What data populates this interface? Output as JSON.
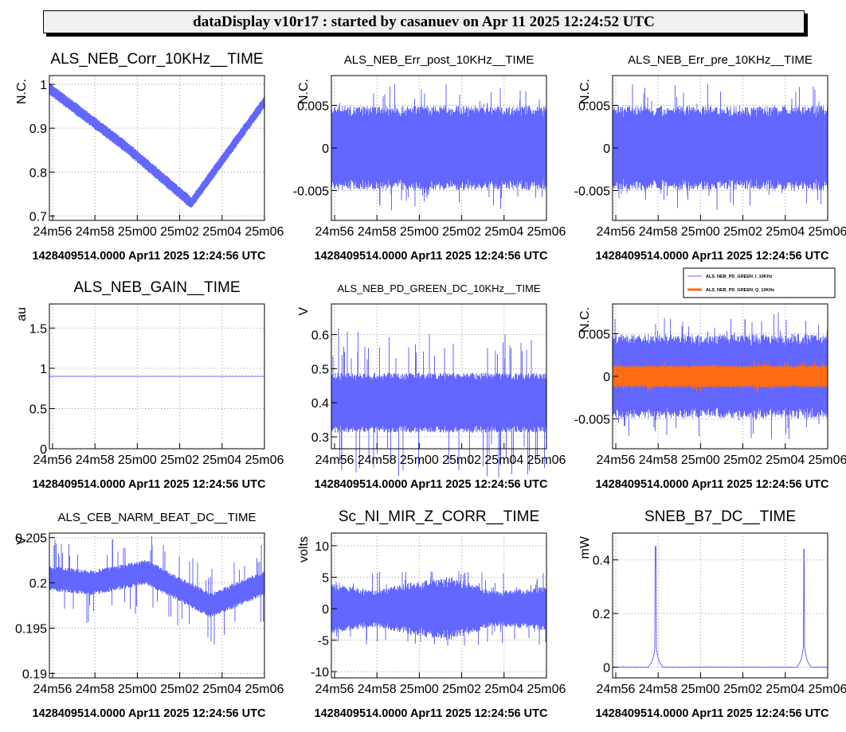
{
  "header": {
    "title": "dataDisplay v10r17 : started by casanuev on Apr 11 2025 12:24:52 UTC"
  },
  "colors": {
    "series": "#6366ff",
    "series2": "#ff6a14",
    "grid": "#9a9a9a"
  },
  "chart_data": [
    {
      "type": "line",
      "title": "ALS_NEB_Corr_10KHz__TIME",
      "ylabel": "N.C.",
      "ylim": [
        0.69,
        1.02
      ],
      "yticks": [
        0.7,
        0.8,
        0.9,
        1
      ],
      "ytick_labels": [
        "0.7",
        "0.8",
        "0.9",
        "1"
      ],
      "xtick_labels": [
        "24m56",
        "24m58",
        "25m00",
        "25m02",
        "25m04",
        "25m06"
      ],
      "footer": "1428409514.0000 Apr11 2025 12:24:56 UTC",
      "series": [
        {
          "signal": "vshape",
          "x": [
            0,
            0.35,
            0.66,
            1
          ],
          "center": [
            0.99,
            0.86,
            0.73,
            0.96
          ],
          "noise": 0.012
        }
      ]
    },
    {
      "type": "line",
      "title": "ALS_NEB_Err_post_10KHz__TIME",
      "ylabel": "N.C.",
      "ylim": [
        -0.0085,
        0.0085
      ],
      "yticks": [
        -0.005,
        0,
        0.005
      ],
      "ytick_labels": [
        "-0.005",
        "0",
        "0.005"
      ],
      "xtick_labels": [
        "24m56",
        "24m58",
        "25m00",
        "25m02",
        "25m04",
        "25m06"
      ],
      "footer": "1428409514.0000 Apr11 2025 12:24:56 UTC",
      "series": [
        {
          "signal": "band",
          "center": 0,
          "half": 0.0045,
          "spike": 0.0075
        }
      ]
    },
    {
      "type": "line",
      "title": "ALS_NEB_Err_pre_10KHz__TIME",
      "ylabel": "N.C.",
      "ylim": [
        -0.0085,
        0.0085
      ],
      "yticks": [
        -0.005,
        0,
        0.005
      ],
      "ytick_labels": [
        "-0.005",
        "0",
        "0.005"
      ],
      "xtick_labels": [
        "24m56",
        "24m58",
        "25m00",
        "25m02",
        "25m04",
        "25m06"
      ],
      "footer": "1428409514.0000 Apr11 2025 12:24:56 UTC",
      "series": [
        {
          "signal": "band",
          "center": 0,
          "half": 0.0045,
          "spike": 0.0075
        }
      ]
    },
    {
      "type": "line",
      "title": "ALS_NEB_GAIN__TIME",
      "ylabel": "au",
      "ylim": [
        0,
        1.8
      ],
      "yticks": [
        0,
        0.5,
        1,
        1.5
      ],
      "ytick_labels": [
        "0",
        "0.5",
        "1",
        "1.5"
      ],
      "xtick_labels": [
        "24m56",
        "24m58",
        "25m00",
        "25m02",
        "25m04",
        "25m06"
      ],
      "footer": "1428409514.0000 Apr11 2025 12:24:56 UTC",
      "series": [
        {
          "signal": "flat",
          "center": 0.9
        }
      ]
    },
    {
      "type": "line",
      "title": "ALS_NEB_PD_GREEN_DC_10KHz__TIME",
      "ylabel": "V",
      "ylim": [
        0.265,
        0.69
      ],
      "yticks": [
        0.3,
        0.4,
        0.5,
        0.6
      ],
      "ytick_labels": [
        "0.3",
        "0.4",
        "0.5",
        "0.6"
      ],
      "xtick_labels": [
        "24m56",
        "24m58",
        "25m00",
        "25m02",
        "25m04",
        "25m06"
      ],
      "footer": "1428409514.0000 Apr11 2025 12:24:56 UTC",
      "series": [
        {
          "signal": "band",
          "center": 0.4,
          "half": 0.08,
          "spike": 0.22
        }
      ]
    },
    {
      "type": "line",
      "title": "",
      "ylabel": "N.C.",
      "ylim": [
        -0.0085,
        0.0085
      ],
      "yticks": [
        -0.005,
        0,
        0.005
      ],
      "ytick_labels": [
        "-0.005",
        "0",
        "0.005"
      ],
      "xtick_labels": [
        "24m56",
        "24m58",
        "25m00",
        "25m02",
        "25m04",
        "25m06"
      ],
      "footer": "1428409514.0000 Apr11 2025 12:24:56 UTC",
      "legend": [
        "ALS_NEB_PD_GREEN_I_10KHz",
        "ALS_NEB_PD_GREEN_Q_10KHz"
      ],
      "series": [
        {
          "name": "ALS_NEB_PD_GREEN_I_10KHz",
          "signal": "band",
          "center": 0,
          "half": 0.0045,
          "spike": 0.0075
        },
        {
          "name": "ALS_NEB_PD_GREEN_Q_10KHz",
          "signal": "band",
          "center": 0,
          "half": 0.0012,
          "spike": 0.0018
        }
      ]
    },
    {
      "type": "line",
      "title": "ALS_CEB_NARM_BEAT_DC__TIME",
      "ylabel": "V",
      "ylim": [
        0.1895,
        0.2055
      ],
      "yticks": [
        0.19,
        0.195,
        0.2,
        0.205
      ],
      "ytick_labels": [
        "0.19",
        "0.195",
        "0.2",
        "0.205"
      ],
      "xtick_labels": [
        "24m56",
        "24m58",
        "25m00",
        "25m02",
        "25m04",
        "25m06"
      ],
      "footer": "1428409514.0000 Apr11 2025 12:24:56 UTC",
      "series": [
        {
          "signal": "wave",
          "x": [
            0,
            0.2,
            0.45,
            0.75,
            1
          ],
          "center": [
            0.2005,
            0.2,
            0.2012,
            0.1975,
            0.2
          ],
          "half": 0.0012,
          "spike": 0.0045
        }
      ]
    },
    {
      "type": "line",
      "title": "Sc_NI_MIR_Z_CORR__TIME",
      "ylabel": "volts",
      "ylim": [
        -11,
        12
      ],
      "yticks": [
        -10,
        -5,
        0,
        5,
        10
      ],
      "ytick_labels": [
        "-10",
        "-5",
        "0",
        "5",
        "10"
      ],
      "xtick_labels": [
        "24m56",
        "24m58",
        "25m00",
        "25m02",
        "25m04",
        "25m06"
      ],
      "footer": "1428409514.0000 Apr11 2025 12:24:56 UTC",
      "series": [
        {
          "signal": "wave",
          "x": [
            0,
            0.2,
            0.35,
            0.55,
            0.75,
            1
          ],
          "center": [
            0,
            0,
            0,
            0,
            0,
            0
          ],
          "half_pts": [
            3.5,
            2.5,
            3.5,
            4.5,
            2.5,
            3
          ],
          "spike": 6
        }
      ]
    },
    {
      "type": "line",
      "title": "SNEB_B7_DC__TIME",
      "ylabel": "mW",
      "ylim": [
        -0.04,
        0.5
      ],
      "yticks": [
        0,
        0.2,
        0.4
      ],
      "ytick_labels": [
        "0",
        "0.2",
        "0.4"
      ],
      "xtick_labels": [
        "24m56",
        "24m58",
        "25m00",
        "25m02",
        "25m04",
        "25m06"
      ],
      "footer": "1428409514.0000 Apr11 2025 12:24:56 UTC",
      "series": [
        {
          "signal": "peaks",
          "center": 0,
          "peaks": [
            [
              0.2,
              0.45
            ],
            [
              0.89,
              0.44
            ]
          ]
        }
      ]
    }
  ]
}
